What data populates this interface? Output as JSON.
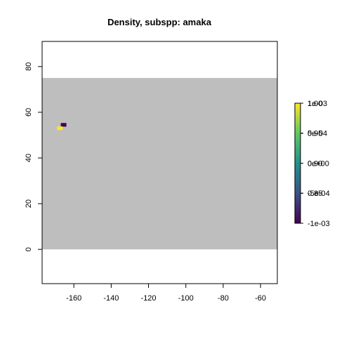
{
  "chart_data": {
    "type": "heatmap",
    "title": "Density, subspp: amaka",
    "xlabel": "",
    "ylabel": "",
    "xlim": [
      -177,
      -51
    ],
    "ylim": [
      -15,
      91
    ],
    "x_ticks": [
      -160,
      -140,
      -120,
      -100,
      -80,
      -60
    ],
    "y_ticks": [
      0,
      20,
      40,
      60,
      80
    ],
    "grid": false,
    "background_region": {
      "x": [
        -177,
        -51
      ],
      "y": [
        0,
        75
      ],
      "color": "#bebebe"
    },
    "cells": [
      {
        "x": -165.5,
        "y": 54.5,
        "width": 3,
        "height": 1.6,
        "value": -0.001,
        "color": "#440154"
      },
      {
        "x": -167.5,
        "y": 53.0,
        "width": 3,
        "height": 1.6,
        "value": 0.001,
        "color": "#fde725"
      }
    ],
    "colorbar": {
      "scale_a": {
        "min": -0.001,
        "max": 0.001,
        "ticks": [
          -0.001,
          -0.0005,
          0.0,
          0.0005,
          0.001
        ],
        "labels": [
          "-1e-03",
          "-5e-04",
          "0e+00",
          "5e-04",
          "1e-03"
        ]
      },
      "scale_b": {
        "min": 0.8,
        "max": 1.0,
        "ticks": [
          0.85,
          0.9,
          0.95,
          1.0
        ],
        "labels": [
          "0.85",
          "0.90",
          "0.95",
          "1.00"
        ]
      },
      "colors": [
        "#440154",
        "#3b528b",
        "#21918c",
        "#5ec962",
        "#fde725"
      ]
    }
  }
}
